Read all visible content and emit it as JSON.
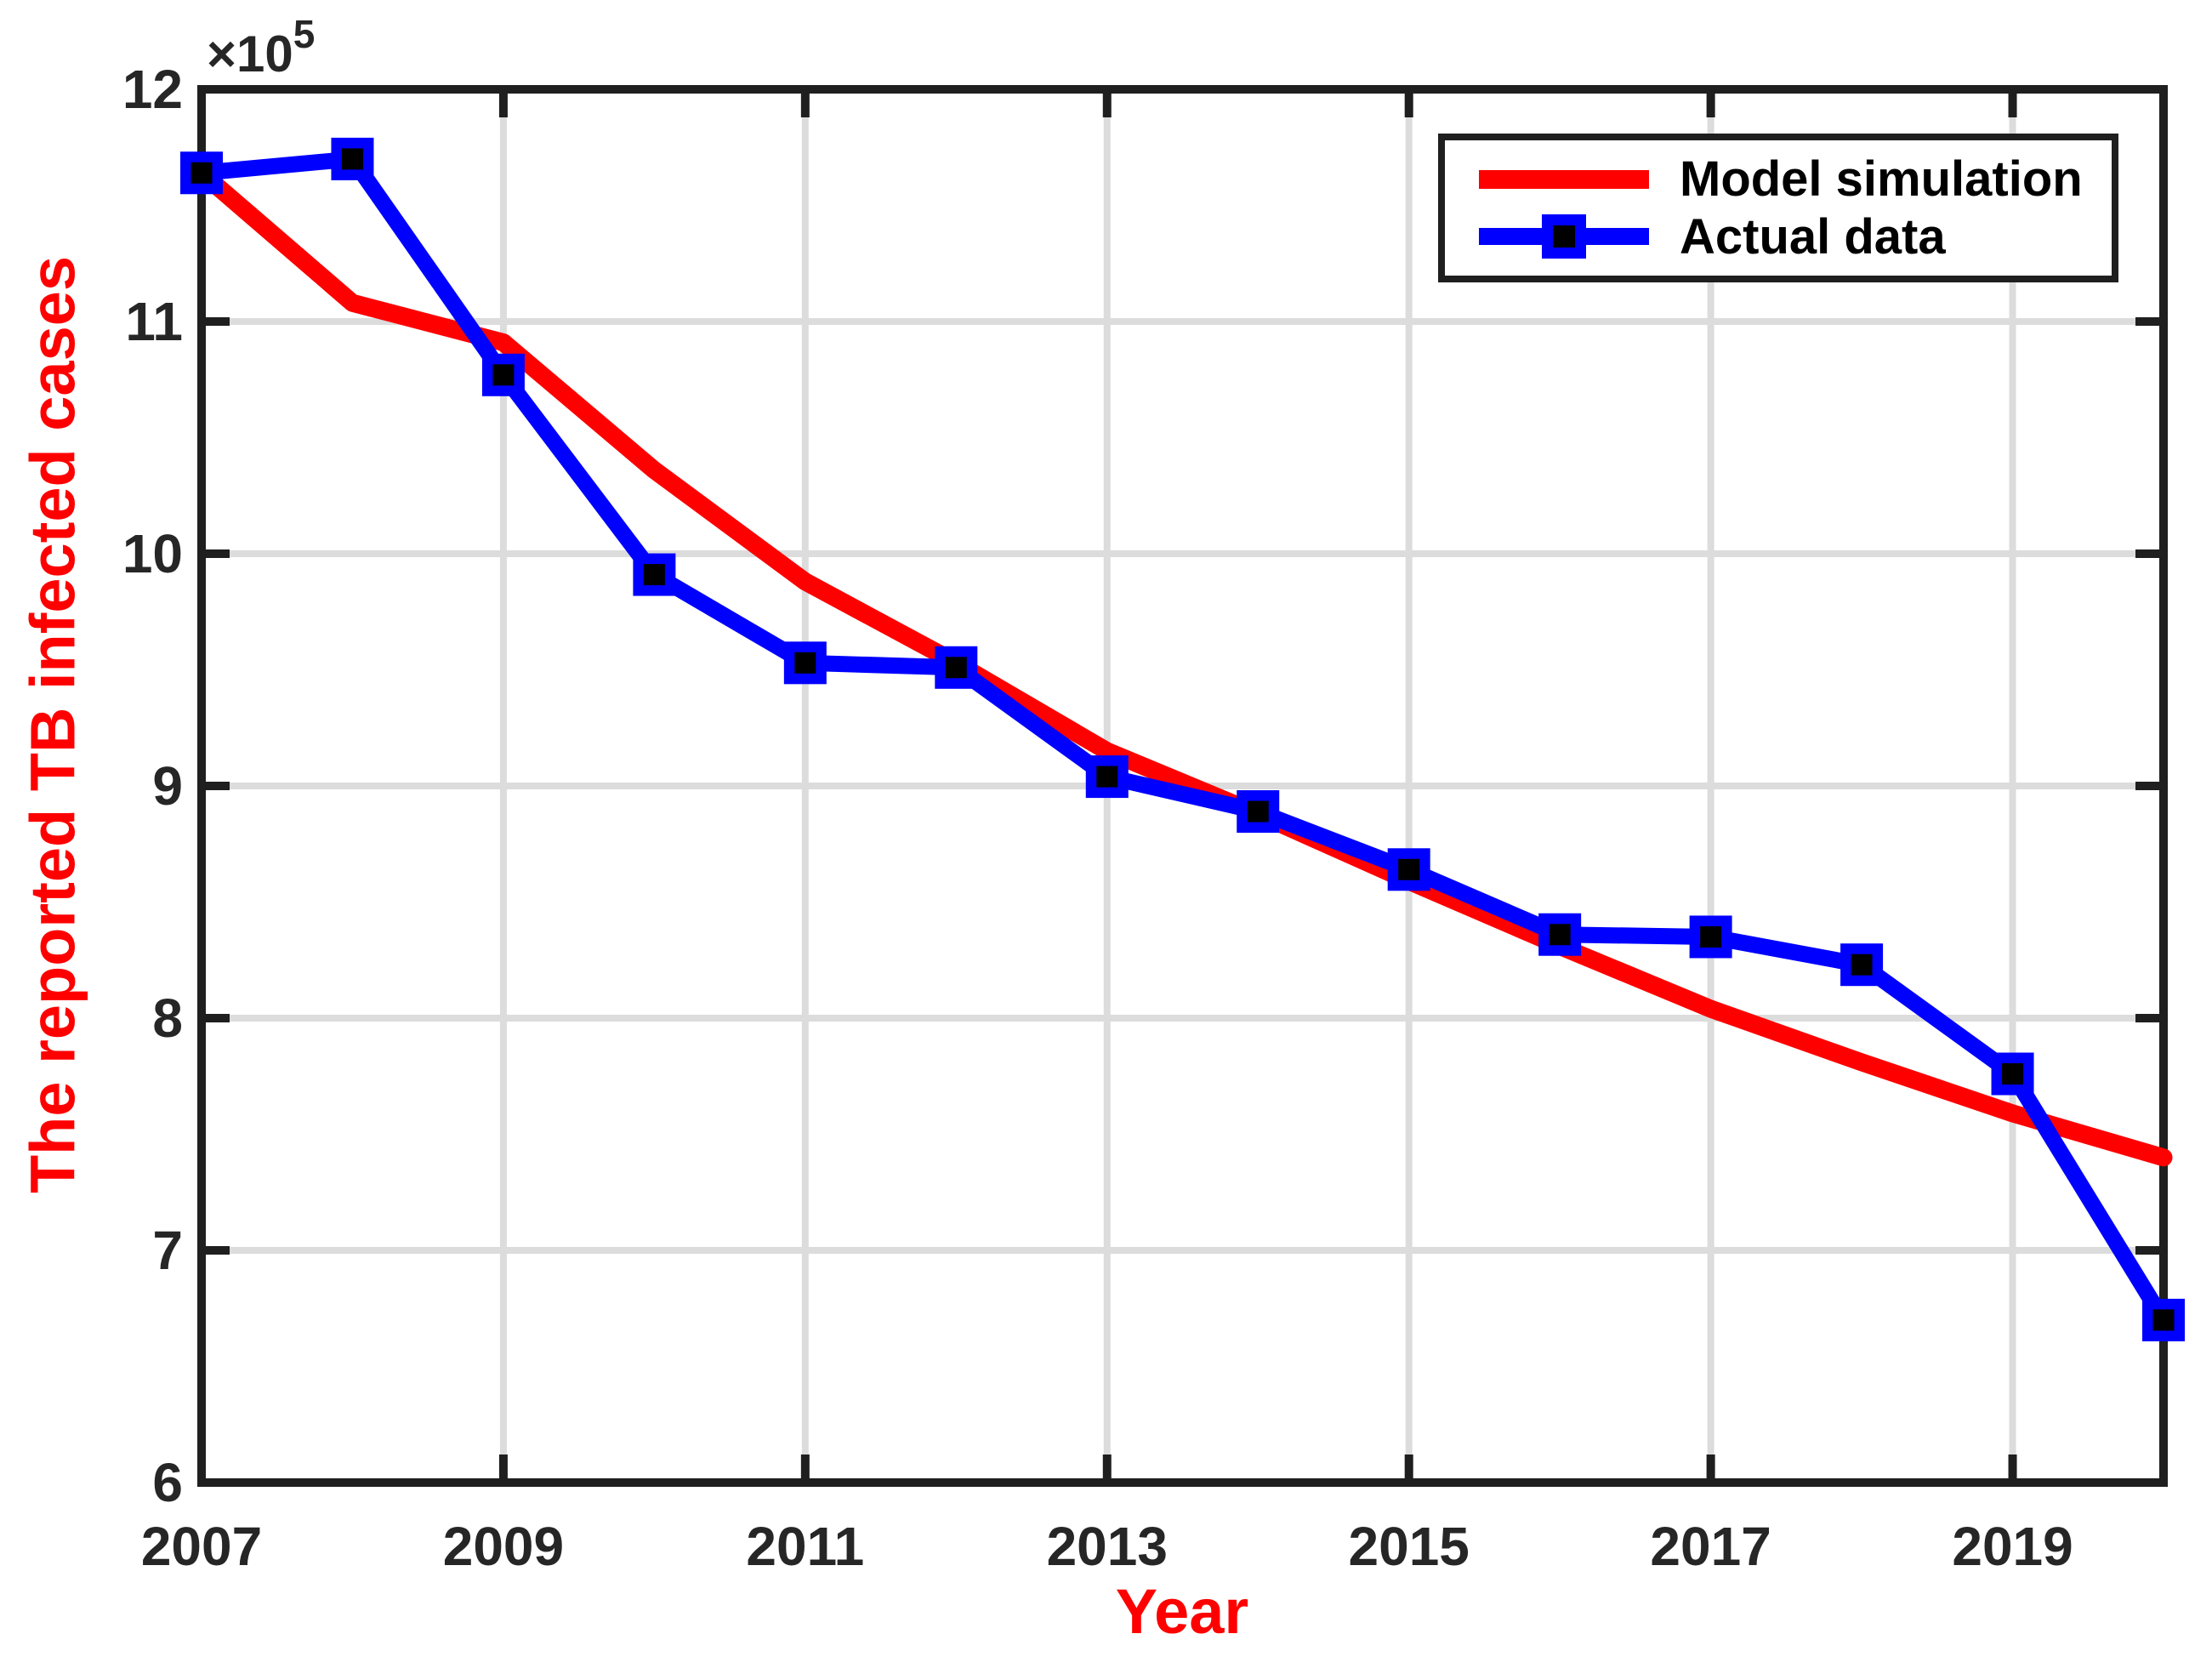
{
  "chart_data": {
    "type": "line",
    "title": "",
    "xlabel": "Year",
    "ylabel": "The reported TB infected cases",
    "y_exponent": {
      "base": "×10",
      "power": "5"
    },
    "xlim": [
      2007,
      2020
    ],
    "ylim": [
      6,
      12
    ],
    "x_ticks": [
      2007,
      2009,
      2011,
      2013,
      2015,
      2017,
      2019
    ],
    "y_ticks": [
      6,
      7,
      8,
      9,
      10,
      11,
      12
    ],
    "grid_x": [
      2009,
      2011,
      2013,
      2015,
      2017,
      2019
    ],
    "grid_y": [
      7,
      8,
      9,
      10,
      11
    ],
    "grid": true,
    "legend_position": "top-right",
    "x": [
      2007,
      2008,
      2009,
      2010,
      2011,
      2012,
      2013,
      2014,
      2015,
      2016,
      2017,
      2018,
      2019,
      2020
    ],
    "series": [
      {
        "name": "Model simulation",
        "color": "#ff0000",
        "line_width": 21,
        "marker": "none",
        "values": [
          11.64,
          11.08,
          10.91,
          10.36,
          9.88,
          9.53,
          9.15,
          8.88,
          8.59,
          8.31,
          8.04,
          7.81,
          7.59,
          7.4
        ]
      },
      {
        "name": "Actual data",
        "color": "#0000ff",
        "line_width": 19,
        "marker": "square",
        "marker_size": 50,
        "marker_center_color": "#000000",
        "values": [
          11.64,
          11.7,
          10.77,
          9.91,
          9.53,
          9.51,
          9.04,
          8.89,
          8.64,
          8.36,
          8.35,
          8.23,
          7.76,
          6.7
        ]
      }
    ],
    "colors": {
      "axis": "#1f1f1f",
      "grid": "#dcdcdc",
      "tick_label": "#262626",
      "axis_label": "#ff0000"
    }
  }
}
